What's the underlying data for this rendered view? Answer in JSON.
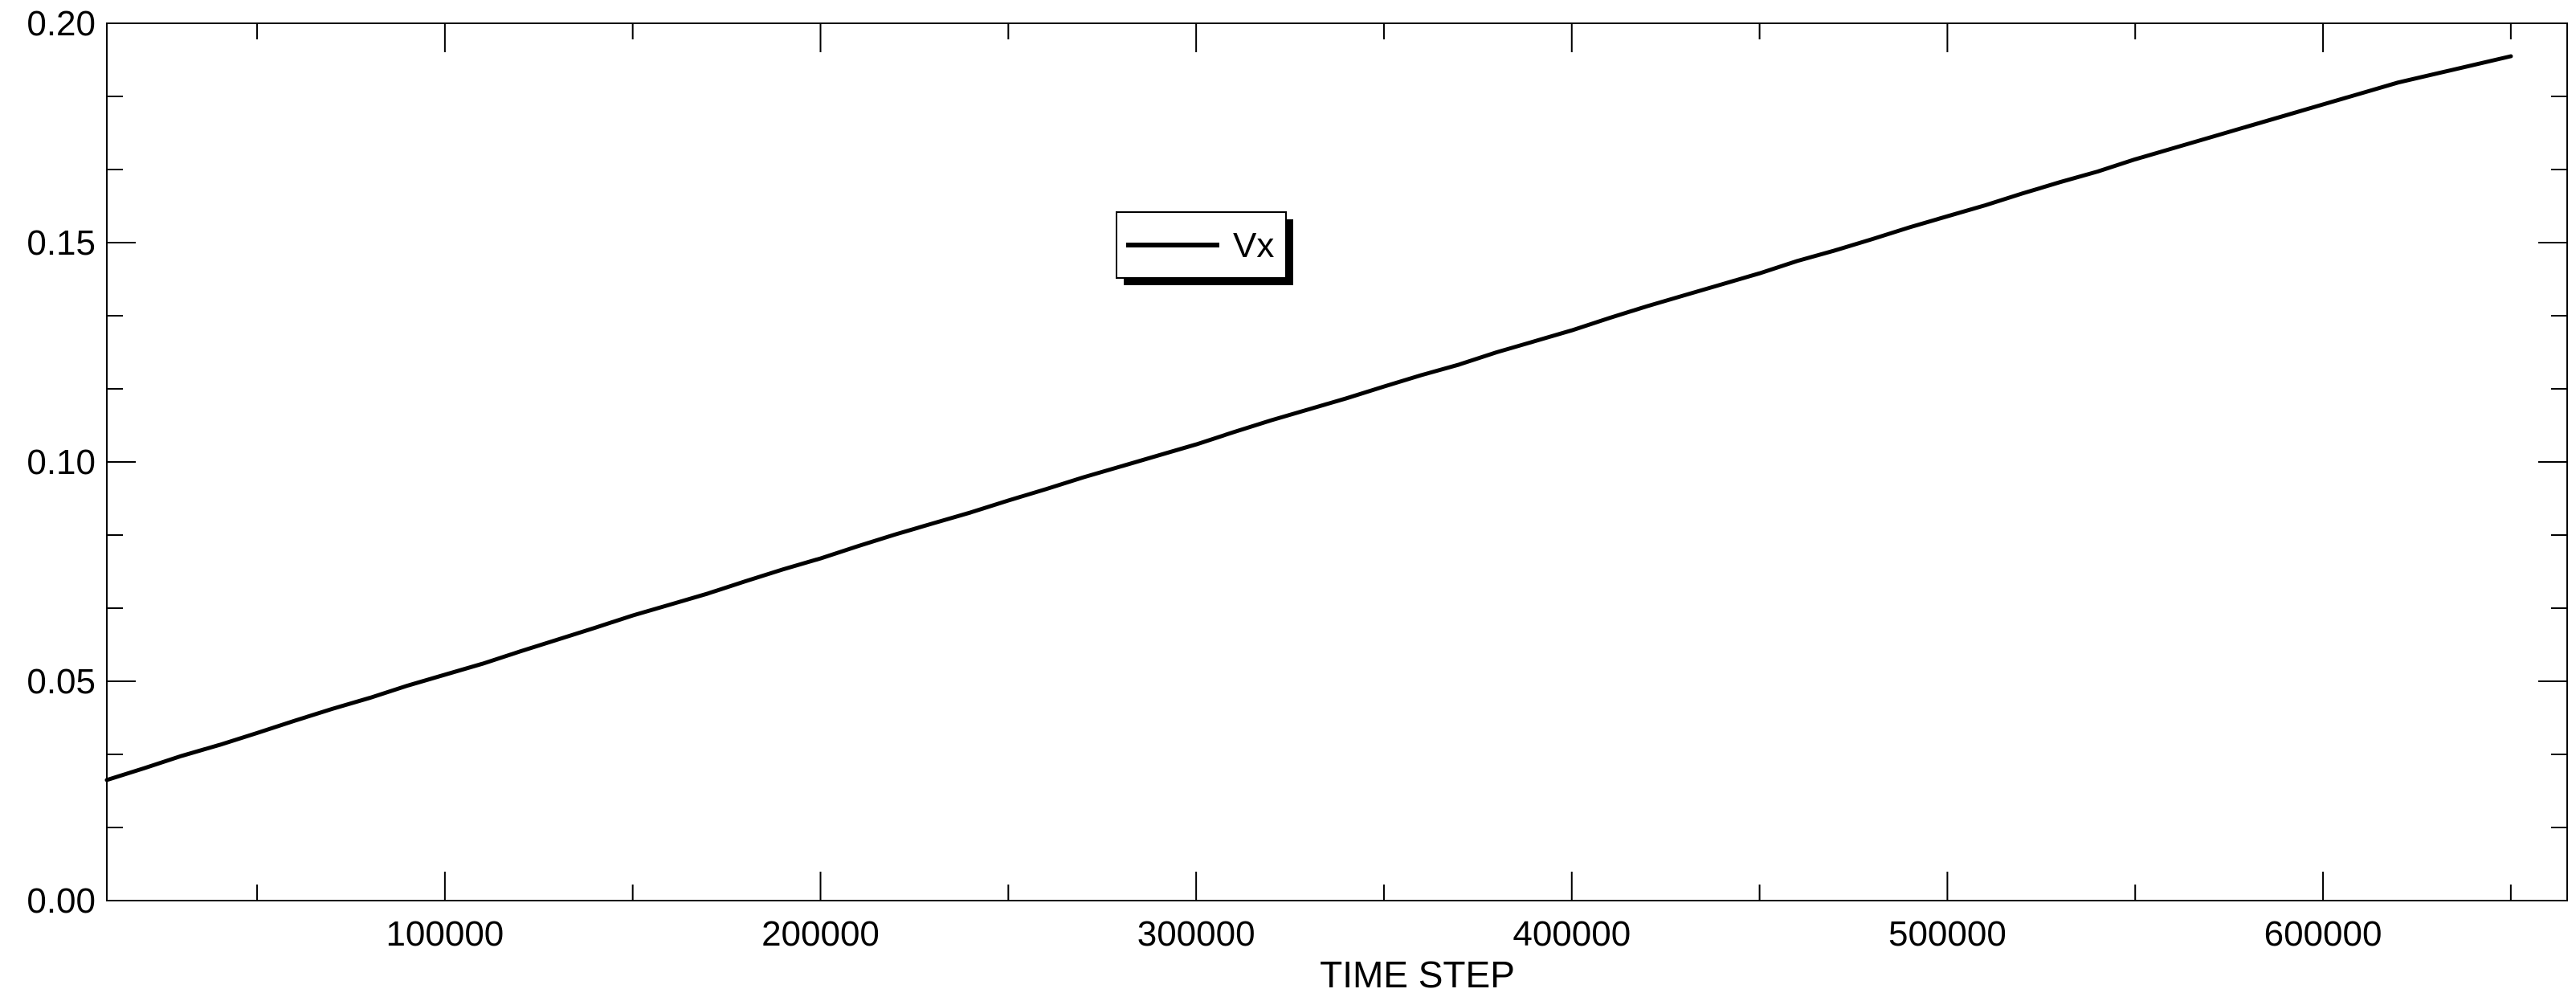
{
  "chart_data": {
    "type": "line",
    "title": "",
    "xlabel": "TIME STEP",
    "ylabel": "",
    "xlim": [
      10000,
      665000
    ],
    "ylim": [
      0,
      0.2
    ],
    "x_ticks": [
      100000,
      200000,
      300000,
      400000,
      500000,
      600000
    ],
    "x_tick_labels": [
      "100000",
      "200000",
      "300000",
      "400000",
      "500000",
      "600000"
    ],
    "y_ticks": [
      0,
      0.05,
      0.1,
      0.15,
      0.2
    ],
    "y_tick_labels": [
      "0.00",
      "0.05",
      "0.10",
      "0.15",
      "0.20"
    ],
    "grid": false,
    "legend": "upper-center",
    "series": [
      {
        "name": "Vx",
        "color": "#000000",
        "x": [
          10000,
          20000,
          30000,
          40000,
          50000,
          60000,
          70000,
          80000,
          90000,
          100000,
          110000,
          120000,
          130000,
          140000,
          150000,
          160000,
          170000,
          180000,
          190000,
          200000,
          210000,
          220000,
          230000,
          240000,
          250000,
          260000,
          270000,
          280000,
          290000,
          300000,
          310000,
          320000,
          330000,
          340000,
          350000,
          360000,
          370000,
          380000,
          390000,
          400000,
          410000,
          420000,
          430000,
          440000,
          450000,
          460000,
          470000,
          480000,
          490000,
          500000,
          510000,
          520000,
          530000,
          540000,
          550000,
          560000,
          570000,
          580000,
          590000,
          600000,
          610000,
          620000,
          630000,
          640000,
          650000
        ],
        "values": [
          0.0275,
          0.0302,
          0.033,
          0.0355,
          0.0382,
          0.041,
          0.0437,
          0.0462,
          0.049,
          0.0515,
          0.054,
          0.0568,
          0.0595,
          0.0622,
          0.065,
          0.0675,
          0.07,
          0.0728,
          0.0755,
          0.078,
          0.0808,
          0.0835,
          0.086,
          0.0885,
          0.0912,
          0.0938,
          0.0965,
          0.099,
          0.1015,
          0.104,
          0.1068,
          0.1095,
          0.112,
          0.1145,
          0.1172,
          0.1198,
          0.1222,
          0.125,
          0.1275,
          0.13,
          0.1328,
          0.1355,
          0.138,
          0.1405,
          0.143,
          0.1458,
          0.1482,
          0.1508,
          0.1535,
          0.156,
          0.1585,
          0.1612,
          0.1638,
          0.1662,
          0.169,
          0.1715,
          0.174,
          0.1765,
          0.179,
          0.1815,
          0.184,
          0.1865,
          0.1885,
          0.1905,
          0.1925
        ]
      }
    ]
  }
}
